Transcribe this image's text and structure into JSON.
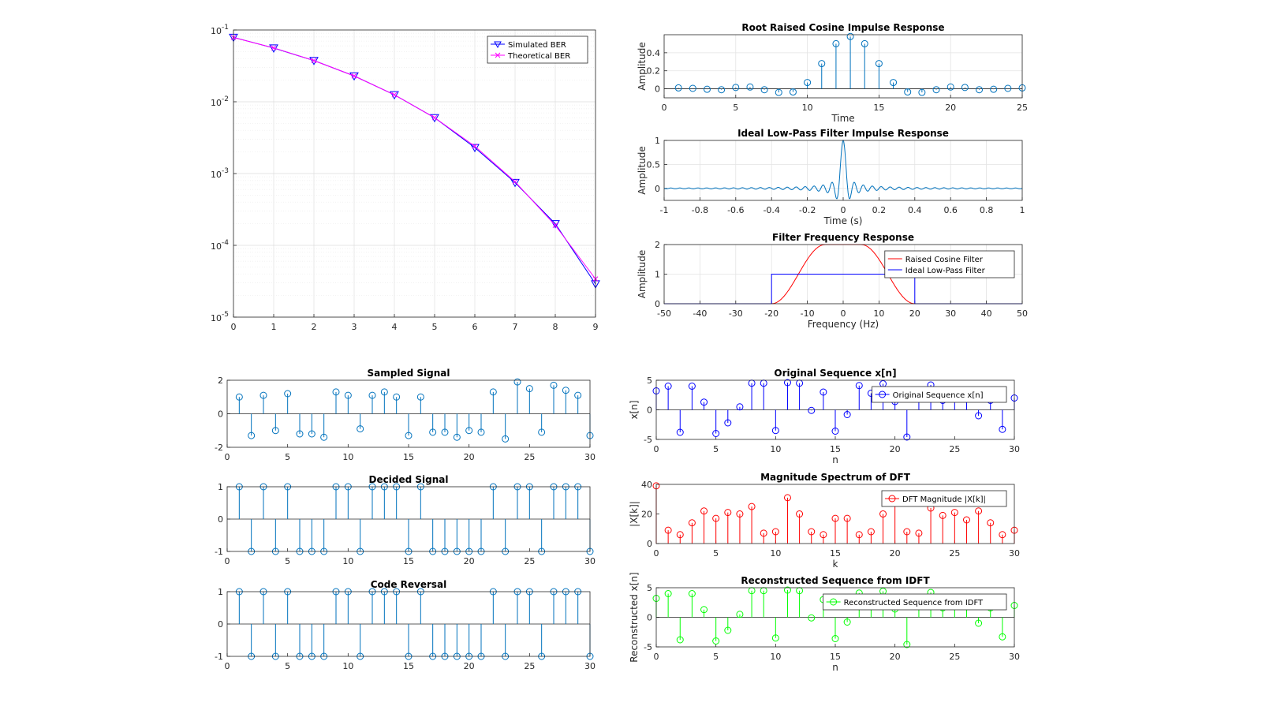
{
  "chart_data": [
    {
      "id": "ber",
      "type": "line",
      "title": "",
      "xlabel": "",
      "ylabel": "",
      "yscale": "log",
      "xlim": [
        0,
        9
      ],
      "ylim": [
        1e-05,
        0.1
      ],
      "xticks": [
        "0",
        "1",
        "2",
        "3",
        "4",
        "5",
        "6",
        "7",
        "8",
        "9"
      ],
      "yticks": [
        "10^-5",
        "10^-4",
        "10^-3",
        "10^-2",
        "10^-1"
      ],
      "grid": true,
      "legend": "top-right",
      "x": [
        0,
        1,
        2,
        3,
        4,
        5,
        6,
        7,
        8,
        9
      ],
      "series": [
        {
          "name": "Simulated BER",
          "color": "#0000ff",
          "marker": "triangle-down",
          "values": [
            0.079,
            0.056,
            0.0375,
            0.0229,
            0.0125,
            0.006,
            0.0023,
            0.00075,
            0.0002,
            2.9e-05
          ]
        },
        {
          "name": "Theoretical BER",
          "color": "#ff00ff",
          "marker": "x",
          "values": [
            0.0786,
            0.0563,
            0.0375,
            0.0229,
            0.0125,
            0.006,
            0.0024,
            0.00077,
            0.00019,
            3.4e-05
          ]
        }
      ]
    },
    {
      "id": "rrc",
      "type": "stem",
      "title": "Root Raised Cosine Impulse Response",
      "xlabel": "Time",
      "ylabel": "Amplitude",
      "xlim": [
        0,
        25
      ],
      "ylim": [
        -0.1,
        0.6
      ],
      "xticks": [
        "0",
        "5",
        "10",
        "15",
        "20",
        "25"
      ],
      "xtickvals": [
        0,
        5,
        10,
        15,
        20,
        25
      ],
      "yticks": [
        "0",
        "0.2",
        "0.4"
      ],
      "ytickvals": [
        0,
        0.2,
        0.4
      ],
      "grid": true,
      "series": [
        {
          "name": "",
          "color": "#0072bd",
          "x": [
            1,
            2,
            3,
            4,
            5,
            6,
            7,
            8,
            9,
            10,
            11,
            12,
            13,
            14,
            15,
            16,
            17,
            18,
            19,
            20,
            21,
            22,
            23,
            24,
            25
          ],
          "values": [
            0.01,
            0.005,
            -0.005,
            -0.01,
            0.015,
            0.02,
            -0.01,
            -0.04,
            -0.035,
            0.07,
            0.28,
            0.5,
            0.58,
            0.5,
            0.28,
            0.07,
            -0.035,
            -0.04,
            -0.01,
            0.02,
            0.015,
            -0.01,
            -0.005,
            0.005,
            0.01
          ]
        }
      ]
    },
    {
      "id": "lpf",
      "type": "line",
      "title": "Ideal Low-Pass Filter Impulse Response",
      "xlabel": "Time (s)",
      "ylabel": "Amplitude",
      "xlim": [
        -1,
        1
      ],
      "ylim": [
        -0.25,
        1
      ],
      "xticks": [
        "-1",
        "-0.8",
        "-0.6",
        "-0.4",
        "-0.2",
        "0",
        "0.2",
        "0.4",
        "0.6",
        "0.8",
        "1"
      ],
      "xtickvals": [
        -1,
        -0.8,
        -0.6,
        -0.4,
        -0.2,
        0,
        0.2,
        0.4,
        0.6,
        0.8,
        1
      ],
      "yticks": [
        "0",
        "0.5",
        "1"
      ],
      "ytickvals": [
        0,
        0.5,
        1
      ],
      "grid": true,
      "function": "sinc",
      "cutoff_hz": 20,
      "series": [
        {
          "name": "",
          "color": "#0072bd"
        }
      ]
    },
    {
      "id": "freq",
      "type": "line",
      "title": "Filter Frequency Response",
      "xlabel": "Frequency (Hz)",
      "ylabel": "Amplitude",
      "xlim": [
        -50,
        50
      ],
      "ylim": [
        0,
        2
      ],
      "xticks": [
        "-50",
        "-40",
        "-30",
        "-20",
        "-10",
        "0",
        "10",
        "20",
        "30",
        "40",
        "50"
      ],
      "xtickvals": [
        -50,
        -40,
        -30,
        -20,
        -10,
        0,
        10,
        20,
        30,
        40,
        50
      ],
      "yticks": [
        "0",
        "1",
        "2"
      ],
      "ytickvals": [
        0,
        1,
        2
      ],
      "grid": true,
      "legend": "top-right",
      "series": [
        {
          "name": "Raised Cosine Filter",
          "color": "#ff0000",
          "shape": "raised-cosine",
          "peak": 2,
          "flat_edge": 5,
          "zero_edge": 20
        },
        {
          "name": "Ideal Low-Pass Filter",
          "color": "#0000ff",
          "shape": "rect",
          "level": 1,
          "edge": 20
        }
      ]
    },
    {
      "id": "sampled",
      "type": "stem",
      "title": "Sampled Signal",
      "xlabel": "",
      "ylabel": "",
      "xlim": [
        0,
        30
      ],
      "ylim": [
        -2,
        2
      ],
      "xticks": [
        "0",
        "5",
        "10",
        "15",
        "20",
        "25",
        "30"
      ],
      "xtickvals": [
        0,
        5,
        10,
        15,
        20,
        25,
        30
      ],
      "yticks": [
        "-2",
        "0",
        "2"
      ],
      "ytickvals": [
        -2,
        0,
        2
      ],
      "grid": false,
      "series": [
        {
          "name": "",
          "color": "#0072bd",
          "x": [
            1,
            2,
            3,
            4,
            5,
            6,
            7,
            8,
            9,
            10,
            11,
            12,
            13,
            14,
            15,
            16,
            17,
            18,
            19,
            20,
            21,
            22,
            23,
            24,
            25,
            26,
            27,
            28,
            29,
            30
          ],
          "values": [
            1.0,
            -1.3,
            1.1,
            -1.0,
            1.2,
            -1.2,
            -1.2,
            -1.4,
            1.3,
            1.1,
            -0.9,
            1.1,
            1.3,
            1.0,
            -1.3,
            1.0,
            -1.1,
            -1.1,
            -1.4,
            -1.0,
            -1.1,
            1.3,
            -1.5,
            1.9,
            1.5,
            -1.1,
            1.7,
            1.4,
            1.1,
            -1.3
          ]
        }
      ]
    },
    {
      "id": "decided",
      "type": "stem",
      "title": "Decided Signal",
      "xlabel": "",
      "ylabel": "",
      "xlim": [
        0,
        30
      ],
      "ylim": [
        -1,
        1
      ],
      "xticks": [
        "0",
        "5",
        "10",
        "15",
        "20",
        "25",
        "30"
      ],
      "xtickvals": [
        0,
        5,
        10,
        15,
        20,
        25,
        30
      ],
      "yticks": [
        "-1",
        "0",
        "1"
      ],
      "ytickvals": [
        -1,
        0,
        1
      ],
      "grid": false,
      "series": [
        {
          "name": "",
          "color": "#0072bd",
          "x": [
            1,
            2,
            3,
            4,
            5,
            6,
            7,
            8,
            9,
            10,
            11,
            12,
            13,
            14,
            15,
            16,
            17,
            18,
            19,
            20,
            21,
            22,
            23,
            24,
            25,
            26,
            27,
            28,
            29,
            30
          ],
          "values": [
            1,
            -1,
            1,
            -1,
            1,
            -1,
            -1,
            -1,
            1,
            1,
            -1,
            1,
            1,
            1,
            -1,
            1,
            -1,
            -1,
            -1,
            -1,
            -1,
            1,
            -1,
            1,
            1,
            -1,
            1,
            1,
            1,
            -1
          ]
        }
      ]
    },
    {
      "id": "reversal",
      "type": "stem",
      "title": "Code Reversal",
      "xlabel": "",
      "ylabel": "",
      "xlim": [
        0,
        30
      ],
      "ylim": [
        -1,
        1
      ],
      "xticks": [
        "0",
        "5",
        "10",
        "15",
        "20",
        "25",
        "30"
      ],
      "xtickvals": [
        0,
        5,
        10,
        15,
        20,
        25,
        30
      ],
      "yticks": [
        "-1",
        "0",
        "1"
      ],
      "ytickvals": [
        -1,
        0,
        1
      ],
      "grid": false,
      "series": [
        {
          "name": "",
          "color": "#0072bd",
          "x": [
            1,
            2,
            3,
            4,
            5,
            6,
            7,
            8,
            9,
            10,
            11,
            12,
            13,
            14,
            15,
            16,
            17,
            18,
            19,
            20,
            21,
            22,
            23,
            24,
            25,
            26,
            27,
            28,
            29,
            30
          ],
          "values": [
            1,
            -1,
            1,
            -1,
            1,
            -1,
            -1,
            -1,
            1,
            1,
            -1,
            1,
            1,
            1,
            -1,
            1,
            -1,
            -1,
            -1,
            -1,
            -1,
            1,
            -1,
            1,
            1,
            -1,
            1,
            1,
            1,
            -1
          ]
        }
      ]
    },
    {
      "id": "orig",
      "type": "stem",
      "title": "Original Sequence x[n]",
      "xlabel": "n",
      "ylabel": "x[n]",
      "xlim": [
        0,
        30
      ],
      "ylim": [
        -5,
        5
      ],
      "xticks": [
        "0",
        "5",
        "10",
        "15",
        "20",
        "25",
        "30"
      ],
      "xtickvals": [
        0,
        5,
        10,
        15,
        20,
        25,
        30
      ],
      "yticks": [
        "-5",
        "0",
        "5"
      ],
      "ytickvals": [
        -5,
        0,
        5
      ],
      "grid": false,
      "legend": "top-right",
      "series": [
        {
          "name": "Original Sequence x[n]",
          "color": "#0000ff",
          "x": [
            0,
            1,
            2,
            3,
            4,
            5,
            6,
            7,
            8,
            9,
            10,
            11,
            12,
            13,
            14,
            15,
            16,
            17,
            18,
            19,
            20,
            21,
            22,
            23,
            24,
            25,
            26,
            27,
            28,
            29,
            30
          ],
          "values": [
            3.2,
            4.0,
            -3.8,
            4.0,
            1.3,
            -4.0,
            -2.2,
            0.5,
            4.5,
            4.5,
            -3.5,
            4.6,
            4.5,
            -0.1,
            3.0,
            -3.6,
            -0.8,
            4.1,
            2.8,
            4.4,
            1.4,
            -4.6,
            2.3,
            4.2,
            1.6,
            2.5,
            1.8,
            -1.0,
            1.6,
            -3.3,
            2.0
          ]
        }
      ]
    },
    {
      "id": "dft",
      "type": "stem",
      "title": "Magnitude Spectrum of DFT",
      "xlabel": "k",
      "ylabel": "|X[k]|",
      "xlim": [
        0,
        30
      ],
      "ylim": [
        0,
        40
      ],
      "xticks": [
        "0",
        "5",
        "10",
        "15",
        "20",
        "25",
        "30"
      ],
      "xtickvals": [
        0,
        5,
        10,
        15,
        20,
        25,
        30
      ],
      "yticks": [
        "0",
        "20",
        "40"
      ],
      "ytickvals": [
        0,
        20,
        40
      ],
      "grid": false,
      "legend": "top-right",
      "series": [
        {
          "name": "DFT Magnitude |X[k]|",
          "color": "#ff0000",
          "x": [
            0,
            1,
            2,
            3,
            4,
            5,
            6,
            7,
            8,
            9,
            10,
            11,
            12,
            13,
            14,
            15,
            16,
            17,
            18,
            19,
            20,
            21,
            22,
            23,
            24,
            25,
            26,
            27,
            28,
            29,
            30
          ],
          "values": [
            39,
            9,
            6,
            14,
            22,
            17,
            21,
            20,
            25,
            7,
            8,
            31,
            20,
            8,
            6,
            17,
            17,
            6,
            8,
            20,
            28,
            8,
            7,
            24,
            19,
            21,
            16,
            22,
            14,
            6,
            9
          ]
        }
      ]
    },
    {
      "id": "idft",
      "type": "stem",
      "title": "Reconstructed Sequence from IDFT",
      "xlabel": "n",
      "ylabel": "Reconstructed x[n]",
      "xlim": [
        0,
        30
      ],
      "ylim": [
        -5,
        5
      ],
      "xticks": [
        "0",
        "5",
        "10",
        "15",
        "20",
        "25",
        "30"
      ],
      "xtickvals": [
        0,
        5,
        10,
        15,
        20,
        25,
        30
      ],
      "yticks": [
        "-5",
        "0",
        "5"
      ],
      "ytickvals": [
        -5,
        0,
        5
      ],
      "grid": false,
      "legend": "top-right",
      "series": [
        {
          "name": "Reconstructed Sequence from IDFT",
          "color": "#00ff00",
          "x": [
            0,
            1,
            2,
            3,
            4,
            5,
            6,
            7,
            8,
            9,
            10,
            11,
            12,
            13,
            14,
            15,
            16,
            17,
            18,
            19,
            20,
            21,
            22,
            23,
            24,
            25,
            26,
            27,
            28,
            29,
            30
          ],
          "values": [
            3.2,
            4.0,
            -3.8,
            4.0,
            1.3,
            -4.0,
            -2.2,
            0.5,
            4.5,
            4.5,
            -3.5,
            4.6,
            4.5,
            -0.1,
            3.0,
            -3.6,
            -0.8,
            4.1,
            2.8,
            4.4,
            1.4,
            -4.6,
            2.3,
            4.2,
            1.6,
            2.5,
            1.8,
            -1.0,
            1.6,
            -3.3,
            2.0
          ]
        }
      ]
    }
  ]
}
